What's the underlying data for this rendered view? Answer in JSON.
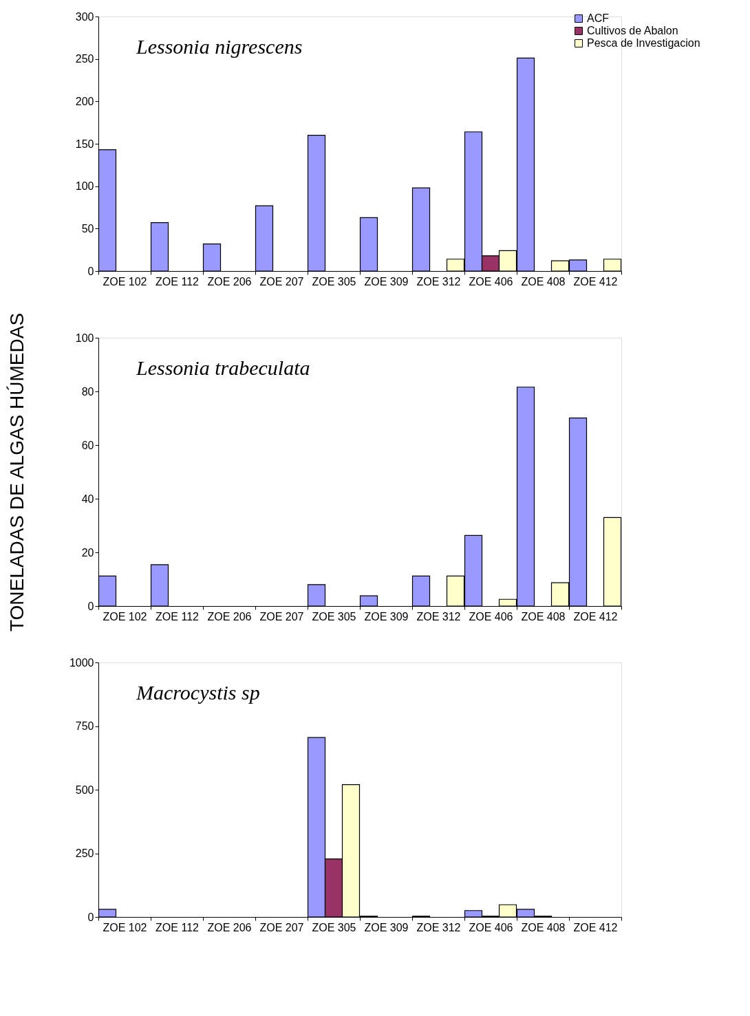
{
  "chart_data": [
    {
      "type": "bar",
      "title": "Lessonia nigrescens",
      "categories": [
        "ZOE 102",
        "ZOE 112",
        "ZOE 206",
        "ZOE 207",
        "ZOE 305",
        "ZOE 309",
        "ZOE 312",
        "ZOE 406",
        "ZOE 408",
        "ZOE 412"
      ],
      "series": [
        {
          "name": "ACF",
          "color": "#9999ff",
          "values": [
            143,
            57,
            32,
            77,
            160,
            63,
            98,
            164,
            251,
            13
          ]
        },
        {
          "name": "Cultivos de Abalon",
          "color": "#993366",
          "values": [
            null,
            null,
            null,
            null,
            null,
            null,
            null,
            18,
            null,
            null
          ]
        },
        {
          "name": "Pesca de Investigacion",
          "color": "#ffffcc",
          "values": [
            null,
            null,
            null,
            null,
            null,
            null,
            14,
            24,
            12,
            14
          ]
        }
      ],
      "ylim": [
        0,
        300
      ],
      "yticks": [
        0,
        50,
        100,
        150,
        200,
        250,
        300
      ],
      "grid": false,
      "legend": "top right"
    },
    {
      "type": "bar",
      "title": "Lessonia trabeculata",
      "ylabel": "TONELADAS DE ALGAS HÚMEDAS",
      "categories": [
        "ZOE 102",
        "ZOE 112",
        "ZOE 206",
        "ZOE 207",
        "ZOE 305",
        "ZOE 309",
        "ZOE 312",
        "ZOE 406",
        "ZOE 408",
        "ZOE 412"
      ],
      "series": [
        {
          "name": "ACF",
          "color": "#9999ff",
          "values": [
            11.2,
            15.4,
            null,
            null,
            8,
            3.8,
            11.2,
            26.3,
            81.6,
            70.1
          ]
        },
        {
          "name": "Cultivos de Abalon",
          "color": "#993366",
          "values": [
            null,
            null,
            null,
            null,
            null,
            null,
            null,
            null,
            null,
            null
          ]
        },
        {
          "name": "Pesca de Investigacion",
          "color": "#ffffcc",
          "values": [
            null,
            null,
            null,
            null,
            null,
            null,
            11.2,
            2.5,
            8.7,
            33
          ]
        }
      ],
      "ylim": [
        0,
        100
      ],
      "yticks": [
        0,
        20,
        40,
        60,
        80,
        100
      ],
      "grid": false,
      "legend": false
    },
    {
      "type": "bar",
      "title": "Macrocystis sp",
      "categories": [
        "ZOE 102",
        "ZOE 112",
        "ZOE 206",
        "ZOE 207",
        "ZOE 305",
        "ZOE 309",
        "ZOE 312",
        "ZOE 406",
        "ZOE 408",
        "ZOE 412"
      ],
      "series": [
        {
          "name": "ACF",
          "color": "#9999ff",
          "values": [
            30,
            null,
            null,
            null,
            705,
            3,
            3,
            25,
            30,
            null
          ]
        },
        {
          "name": "Cultivos de Abalon",
          "color": "#993366",
          "values": [
            null,
            null,
            null,
            null,
            228,
            null,
            null,
            3,
            3,
            null
          ]
        },
        {
          "name": "Pesca de Investigacion",
          "color": "#ffffcc",
          "values": [
            null,
            null,
            null,
            null,
            520,
            null,
            null,
            48,
            null,
            null
          ]
        }
      ],
      "ylim": [
        0,
        1000
      ],
      "yticks": [
        0,
        250,
        500,
        750,
        1000
      ],
      "grid": false,
      "legend": false
    }
  ]
}
